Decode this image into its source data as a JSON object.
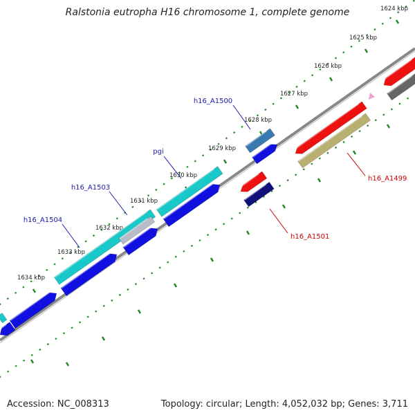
{
  "title": "Ralstonia eutropha H16 chromosome 1, complete genome",
  "footer": {
    "accession": "Accession: NC_008313",
    "summary": "Topology: circular; Length: 4,052,032 bp; Genes: 3,711"
  },
  "colors": {
    "backbone": "#888888",
    "tick": "#228822",
    "forward_label": "#1a1aa8",
    "reverse_label": "#cc0000"
  },
  "ticks": [
    {
      "label": "1624 kbp"
    },
    {
      "label": "1625 kbp"
    },
    {
      "label": "1626 kbp"
    },
    {
      "label": "1627 kbp"
    },
    {
      "label": "1628 kbp"
    },
    {
      "label": "1629 kbp"
    },
    {
      "label": "1630 kbp"
    },
    {
      "label": "1631 kbp"
    },
    {
      "label": "1632 kbp"
    },
    {
      "label": "1633 kbp"
    },
    {
      "label": "1634 kbp"
    }
  ],
  "gene_labels": [
    {
      "text": "h16_A1500",
      "strand": "forward"
    },
    {
      "text": "pgi",
      "strand": "forward"
    },
    {
      "text": "h16_A1503",
      "strand": "forward"
    },
    {
      "text": "h16_A1504",
      "strand": "forward"
    },
    {
      "text": "h16_A1499",
      "strand": "reverse"
    },
    {
      "text": "h16_A1501",
      "strand": "reverse"
    }
  ],
  "features": [
    {
      "name": "cds-h16-a1504",
      "color": "#19c8c8"
    },
    {
      "name": "cds-pgi",
      "color": "#19c8c8"
    },
    {
      "name": "cds-h16-a1500",
      "color": "#3a78b0"
    },
    {
      "name": "cds-h16-a1503",
      "color": "#b8bcc8"
    },
    {
      "name": "gene-blue-1",
      "color": "#1010e0"
    },
    {
      "name": "gene-blue-2",
      "color": "#1010e0"
    },
    {
      "name": "gene-blue-3",
      "color": "#1010e0"
    },
    {
      "name": "gene-blue-4",
      "color": "#1010e0"
    },
    {
      "name": "gene-blue-5",
      "color": "#1010e0"
    },
    {
      "name": "cds-h16-a1499-red",
      "color": "#ee1111"
    },
    {
      "name": "cds-h16-a1499-olive",
      "color": "#b8b070"
    },
    {
      "name": "cds-h16-a1501-red",
      "color": "#ee1111"
    },
    {
      "name": "cds-h16-a1501-navy",
      "color": "#10107a"
    },
    {
      "name": "gene-red-right",
      "color": "#ee1111"
    },
    {
      "name": "gene-gray-right",
      "color": "#666666"
    },
    {
      "name": "small-pink-marker",
      "color": "#f0a0c8"
    }
  ]
}
